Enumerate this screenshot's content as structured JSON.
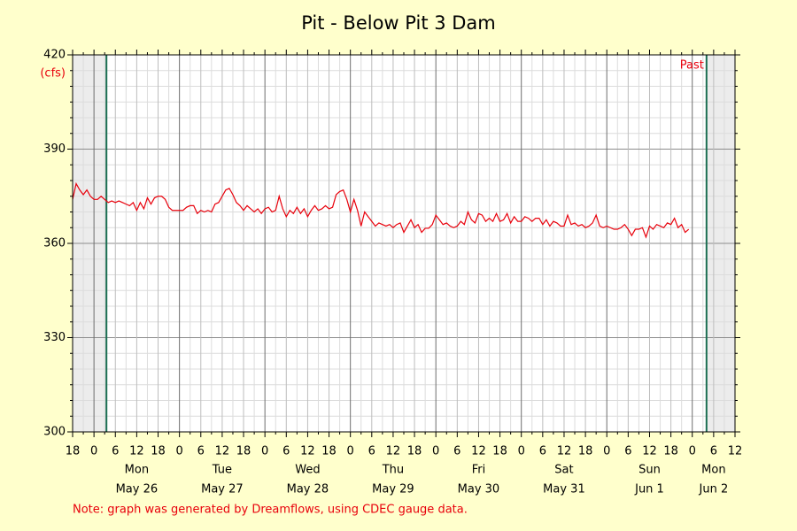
{
  "chart_data": {
    "type": "line",
    "title": "Pit - Below Pit 3 Dam",
    "y_unit": "(cfs)",
    "note": "Note: graph was generated by Dreamflows, using CDEC gauge data.",
    "past_label": "Past",
    "color": "#e8000b",
    "range_color": "#1b6e52",
    "data_start": 3.5,
    "data_end": 172,
    "grid": true,
    "xlim": [
      -6,
      180
    ],
    "ylim": [
      300,
      420
    ],
    "yticks": [
      300,
      330,
      360,
      390,
      420
    ],
    "yminor": [
      305,
      310,
      315,
      320,
      325,
      335,
      340,
      345,
      350,
      355,
      365,
      370,
      375,
      380,
      385,
      395,
      400,
      405,
      410,
      415
    ],
    "xticks": [
      {
        "value": -6,
        "label": "18"
      },
      0,
      6,
      12,
      18,
      {
        "value": 24,
        "label": "0"
      },
      {
        "value": 30,
        "label": "6"
      },
      {
        "value": 36,
        "label": "12"
      },
      {
        "value": 42,
        "label": "18"
      },
      {
        "value": 48,
        "label": "0"
      },
      {
        "value": 54,
        "label": "6"
      },
      {
        "value": 60,
        "label": "12"
      },
      {
        "value": 66,
        "label": "18"
      },
      {
        "value": 72,
        "label": "0"
      },
      {
        "value": 78,
        "label": "6"
      },
      {
        "value": 84,
        "label": "12"
      },
      {
        "value": 90,
        "label": "18"
      },
      {
        "value": 96,
        "label": "0"
      },
      {
        "value": 102,
        "label": "6"
      },
      {
        "value": 108,
        "label": "12"
      },
      {
        "value": 114,
        "label": "18"
      },
      {
        "value": 120,
        "label": "0"
      },
      {
        "value": 126,
        "label": "6"
      },
      {
        "value": 132,
        "label": "12"
      },
      {
        "value": 138,
        "label": "18"
      },
      {
        "value": 144,
        "label": "0"
      },
      {
        "value": 150,
        "label": "6"
      },
      {
        "value": 156,
        "label": "12"
      },
      {
        "value": 162,
        "label": "18"
      },
      {
        "value": 168,
        "label": "0"
      },
      {
        "value": 174,
        "label": "6"
      },
      {
        "value": 180,
        "label": "12"
      }
    ],
    "xminor": [
      -3,
      3,
      9,
      15,
      21,
      27,
      33,
      39,
      45,
      51,
      57,
      63,
      69,
      75,
      81,
      87,
      93,
      99,
      105,
      111,
      117,
      123,
      129,
      135,
      141,
      147,
      153,
      159,
      165,
      171,
      177
    ],
    "days": [
      {
        "value": 12,
        "weekday": "Mon",
        "date": "May 26"
      },
      {
        "value": 36,
        "weekday": "Tue",
        "date": "May 27"
      },
      {
        "value": 60,
        "weekday": "Wed",
        "date": "May 28"
      },
      {
        "value": 84,
        "weekday": "Thu",
        "date": "May 29"
      },
      {
        "value": 108,
        "weekday": "Fri",
        "date": "May 30"
      },
      {
        "value": 132,
        "weekday": "Sat",
        "date": "May 31"
      },
      {
        "value": 156,
        "weekday": "Sun",
        "date": "Jun 1"
      },
      {
        "value": 174,
        "weekday": "Mon",
        "date": "Jun 2"
      }
    ],
    "x": [
      -6,
      -5,
      -4,
      -3,
      -2,
      -1,
      0,
      1,
      2,
      3,
      4,
      5,
      6,
      7,
      8,
      9,
      10,
      11,
      12,
      13,
      14,
      15,
      16,
      17,
      18,
      19,
      20,
      21,
      22,
      23,
      24,
      25,
      26,
      27,
      28,
      29,
      30,
      31,
      32,
      33,
      34,
      35,
      36,
      37,
      38,
      39,
      40,
      41,
      42,
      43,
      44,
      45,
      46,
      47,
      48,
      49,
      50,
      51,
      52,
      53,
      54,
      55,
      56,
      57,
      58,
      59,
      60,
      61,
      62,
      63,
      64,
      65,
      66,
      67,
      68,
      69,
      70,
      71,
      72,
      73,
      74,
      75,
      76,
      77,
      78,
      79,
      80,
      81,
      82,
      83,
      84,
      85,
      86,
      87,
      88,
      89,
      90,
      91,
      92,
      93,
      94,
      95,
      96,
      97,
      98,
      99,
      100,
      101,
      102,
      103,
      104,
      105,
      106,
      107,
      108,
      109,
      110,
      111,
      112,
      113,
      114,
      115,
      116,
      117,
      118,
      119,
      120,
      121,
      122,
      123,
      124,
      125,
      126,
      127,
      128,
      129,
      130,
      131,
      132,
      133,
      134,
      135,
      136,
      137,
      138,
      139,
      140,
      141,
      142,
      143,
      144,
      145,
      146,
      147,
      148,
      149,
      150,
      151,
      152,
      153,
      154,
      155,
      156,
      157,
      158,
      159,
      160,
      161,
      162,
      163,
      164,
      165,
      166,
      167
    ],
    "values": [
      374,
      379,
      377,
      375.5,
      377,
      375,
      374,
      374,
      375,
      374,
      373,
      373.5,
      373,
      373.5,
      373,
      372.5,
      372,
      373,
      370.5,
      373,
      371,
      374.5,
      372.5,
      374.5,
      375,
      375,
      374,
      371.5,
      370.5,
      370.5,
      370.5,
      370.5,
      371.5,
      372,
      372,
      369.5,
      370.5,
      370,
      370.5,
      370,
      372.5,
      373,
      375,
      377,
      377.5,
      375.5,
      373,
      372,
      370.5,
      372,
      371,
      370,
      371,
      369.5,
      371,
      371.5,
      370,
      370.5,
      375,
      371,
      368.5,
      370.5,
      369.5,
      371.5,
      369.5,
      371,
      368.5,
      370.5,
      372,
      370.5,
      371,
      372,
      371,
      371.5,
      375.5,
      376.5,
      377,
      374,
      370,
      374,
      370.5,
      365.5,
      370,
      368.5,
      367,
      365.5,
      366.5,
      366,
      365.5,
      366,
      365,
      366,
      366.5,
      363.5,
      365.5,
      367.5,
      365,
      366,
      363.5,
      364.8,
      364.8,
      366,
      369,
      367.5,
      366,
      366.5,
      365.5,
      365,
      365.5,
      367,
      366,
      370,
      367.5,
      366.5,
      369.5,
      369,
      367,
      368,
      367,
      369.5,
      367,
      367.5,
      369.5,
      366.5,
      368.5,
      367,
      367,
      368.5,
      368,
      367,
      368,
      368,
      366,
      367.5,
      365.5,
      367,
      366.5,
      365.5,
      365.5,
      369,
      366,
      366.5,
      365.5,
      366,
      365,
      365.5,
      366.5,
      369,
      365.5,
      365,
      365.5,
      365,
      364.5,
      364.5,
      365,
      366,
      364.5,
      362.5,
      364.5,
      364.5,
      365,
      362,
      365.5,
      364.5,
      366,
      365.5,
      365,
      366.5,
      366,
      368,
      365,
      366,
      363.5,
      364.5
    ]
  }
}
